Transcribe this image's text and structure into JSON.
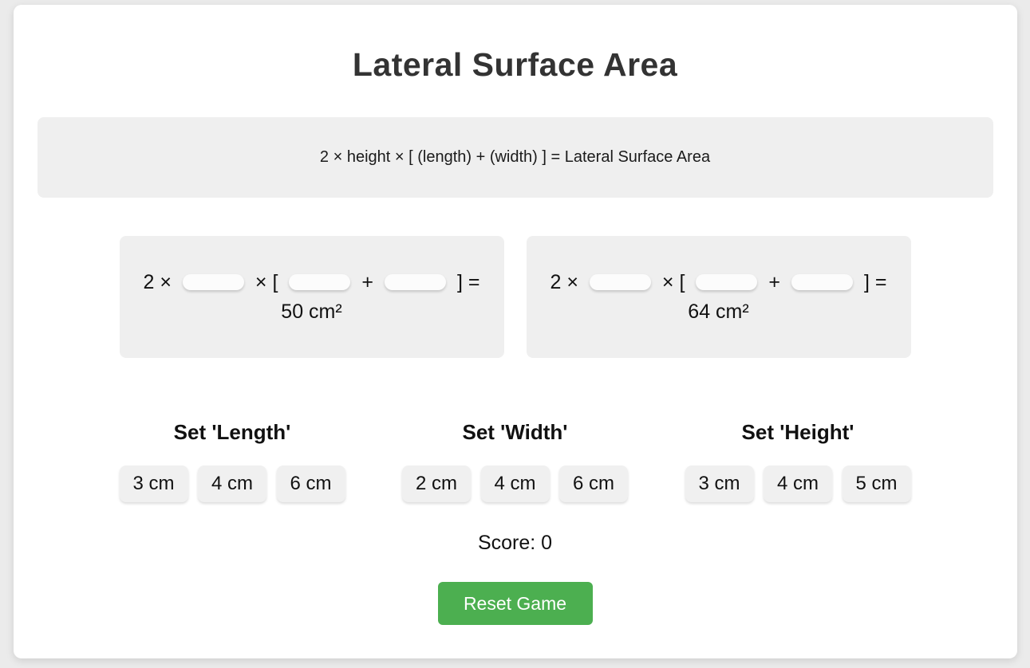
{
  "header": {
    "title": "Lateral Surface Area"
  },
  "formula": {
    "text": "2 × height × [ (length) + (width) ] = Lateral Surface Area"
  },
  "problems": [
    {
      "prefix": "2 ×",
      "times_open_bracket": "× [",
      "plus": "+",
      "close_bracket_equals": "] =",
      "answer": "50 cm²"
    },
    {
      "prefix": "2 ×",
      "times_open_bracket": "× [",
      "plus": "+",
      "close_bracket_equals": "] =",
      "answer": "64 cm²"
    }
  ],
  "sets": [
    {
      "label": "Set 'Length'",
      "chips": [
        "3 cm",
        "4 cm",
        "6 cm"
      ]
    },
    {
      "label": "Set 'Width'",
      "chips": [
        "2 cm",
        "4 cm",
        "6 cm"
      ]
    },
    {
      "label": "Set 'Height'",
      "chips": [
        "3 cm",
        "4 cm",
        "5 cm"
      ]
    }
  ],
  "score": {
    "text": "Score: 0"
  },
  "actions": {
    "reset_label": "Reset Game"
  },
  "colors": {
    "accent_green": "#4caf50",
    "panel_gray": "#efefef",
    "page_background": "#ebebeb",
    "card_white": "#ffffff",
    "title_text": "#333333"
  }
}
